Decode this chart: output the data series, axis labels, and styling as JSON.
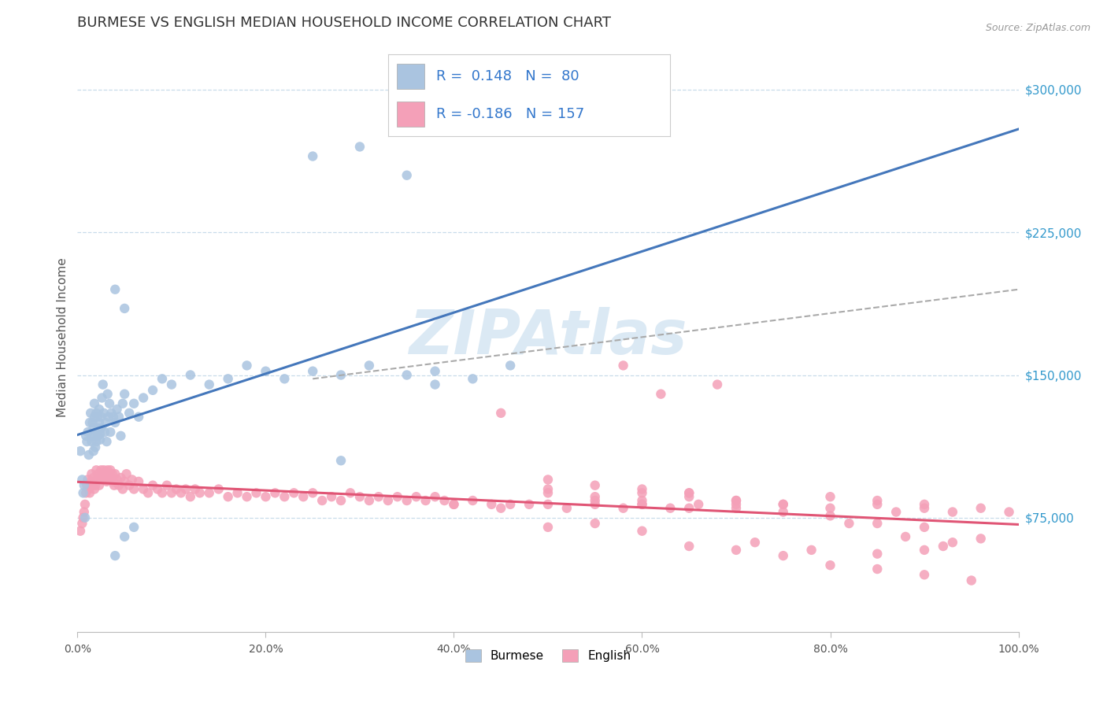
{
  "title": "BURMESE VS ENGLISH MEDIAN HOUSEHOLD INCOME CORRELATION CHART",
  "source": "Source: ZipAtlas.com",
  "ylabel": "Median Household Income",
  "y_ticks": [
    75000,
    150000,
    225000,
    300000
  ],
  "y_tick_labels": [
    "$75,000",
    "$150,000",
    "$225,000",
    "$300,000"
  ],
  "x_min": 0.0,
  "x_max": 1.0,
  "y_min": 15000,
  "y_max": 325000,
  "burmese_color": "#aac4e0",
  "english_color": "#f4a0b8",
  "burmese_line_color": "#4477bb",
  "english_line_color": "#e05575",
  "dashed_line_color": "#aaaaaa",
  "burmese_R": "0.148",
  "burmese_N": "80",
  "english_R": "-0.186",
  "english_N": "157",
  "watermark": "ZIPAtlas",
  "background_color": "#ffffff",
  "grid_color": "#c8dcea",
  "title_fontsize": 13,
  "axis_label_fontsize": 11,
  "tick_fontsize": 10,
  "legend_text_color": "#3377cc",
  "burmese_x": [
    0.003,
    0.005,
    0.006,
    0.007,
    0.008,
    0.009,
    0.01,
    0.011,
    0.012,
    0.013,
    0.014,
    0.015,
    0.016,
    0.016,
    0.017,
    0.017,
    0.018,
    0.018,
    0.019,
    0.019,
    0.02,
    0.02,
    0.021,
    0.021,
    0.022,
    0.022,
    0.023,
    0.023,
    0.024,
    0.024,
    0.025,
    0.025,
    0.026,
    0.027,
    0.028,
    0.029,
    0.03,
    0.031,
    0.032,
    0.033,
    0.034,
    0.035,
    0.036,
    0.038,
    0.04,
    0.042,
    0.044,
    0.046,
    0.048,
    0.05,
    0.055,
    0.06,
    0.065,
    0.07,
    0.08,
    0.09,
    0.1,
    0.12,
    0.14,
    0.16,
    0.18,
    0.2,
    0.22,
    0.25,
    0.28,
    0.31,
    0.35,
    0.38,
    0.42,
    0.46,
    0.04,
    0.05,
    0.06,
    0.25,
    0.3,
    0.35,
    0.04,
    0.05,
    0.28,
    0.38
  ],
  "burmese_y": [
    110000,
    95000,
    88000,
    92000,
    75000,
    118000,
    115000,
    120000,
    108000,
    125000,
    130000,
    115000,
    118000,
    125000,
    110000,
    122000,
    128000,
    135000,
    118000,
    112000,
    130000,
    115000,
    128000,
    120000,
    122000,
    118000,
    125000,
    132000,
    119000,
    116000,
    128000,
    122000,
    138000,
    145000,
    130000,
    120000,
    125000,
    115000,
    140000,
    128000,
    135000,
    120000,
    130000,
    128000,
    125000,
    132000,
    128000,
    118000,
    135000,
    140000,
    130000,
    135000,
    128000,
    138000,
    142000,
    148000,
    145000,
    150000,
    145000,
    148000,
    155000,
    152000,
    148000,
    152000,
    150000,
    155000,
    150000,
    152000,
    148000,
    155000,
    55000,
    65000,
    70000,
    265000,
    270000,
    255000,
    195000,
    185000,
    105000,
    145000
  ],
  "english_x": [
    0.003,
    0.005,
    0.006,
    0.007,
    0.008,
    0.009,
    0.01,
    0.011,
    0.012,
    0.013,
    0.014,
    0.015,
    0.016,
    0.017,
    0.018,
    0.019,
    0.02,
    0.021,
    0.022,
    0.023,
    0.024,
    0.025,
    0.026,
    0.027,
    0.028,
    0.029,
    0.03,
    0.031,
    0.032,
    0.033,
    0.034,
    0.035,
    0.036,
    0.037,
    0.038,
    0.039,
    0.04,
    0.042,
    0.044,
    0.046,
    0.048,
    0.05,
    0.052,
    0.055,
    0.058,
    0.06,
    0.065,
    0.07,
    0.075,
    0.08,
    0.085,
    0.09,
    0.095,
    0.1,
    0.105,
    0.11,
    0.115,
    0.12,
    0.125,
    0.13,
    0.14,
    0.15,
    0.16,
    0.17,
    0.18,
    0.19,
    0.2,
    0.21,
    0.22,
    0.23,
    0.24,
    0.25,
    0.26,
    0.27,
    0.28,
    0.29,
    0.3,
    0.31,
    0.32,
    0.33,
    0.34,
    0.35,
    0.36,
    0.37,
    0.38,
    0.39,
    0.4,
    0.42,
    0.44,
    0.46,
    0.48,
    0.5,
    0.52,
    0.55,
    0.58,
    0.6,
    0.63,
    0.66,
    0.7,
    0.75,
    0.8,
    0.85,
    0.87,
    0.9,
    0.93,
    0.96,
    0.99,
    0.5,
    0.55,
    0.6,
    0.65,
    0.7,
    0.75,
    0.8,
    0.85,
    0.9,
    0.85,
    0.9,
    0.93,
    0.96,
    0.5,
    0.6,
    0.65,
    0.7,
    0.4,
    0.45,
    0.55,
    0.6,
    0.65,
    0.7,
    0.75,
    0.8,
    0.85,
    0.9,
    0.62,
    0.68,
    0.58,
    0.45,
    0.5,
    0.55,
    0.6,
    0.65,
    0.7,
    0.75,
    0.8,
    0.85,
    0.9,
    0.95,
    0.72,
    0.78,
    0.82,
    0.88,
    0.92,
    0.5,
    0.55,
    0.6,
    0.65
  ],
  "english_y": [
    68000,
    72000,
    75000,
    78000,
    82000,
    88000,
    92000,
    95000,
    90000,
    88000,
    94000,
    98000,
    92000,
    96000,
    90000,
    92000,
    100000,
    95000,
    98000,
    92000,
    96000,
    100000,
    98000,
    95000,
    100000,
    96000,
    98000,
    94000,
    100000,
    96000,
    98000,
    100000,
    96000,
    98000,
    94000,
    92000,
    98000,
    95000,
    92000,
    96000,
    90000,
    94000,
    98000,
    92000,
    95000,
    90000,
    94000,
    90000,
    88000,
    92000,
    90000,
    88000,
    92000,
    88000,
    90000,
    88000,
    90000,
    86000,
    90000,
    88000,
    88000,
    90000,
    86000,
    88000,
    86000,
    88000,
    86000,
    88000,
    86000,
    88000,
    86000,
    88000,
    84000,
    86000,
    84000,
    88000,
    86000,
    84000,
    86000,
    84000,
    86000,
    84000,
    86000,
    84000,
    86000,
    84000,
    82000,
    84000,
    82000,
    82000,
    82000,
    82000,
    80000,
    82000,
    80000,
    82000,
    80000,
    82000,
    80000,
    82000,
    80000,
    82000,
    78000,
    80000,
    78000,
    80000,
    78000,
    88000,
    86000,
    84000,
    88000,
    84000,
    82000,
    86000,
    84000,
    82000,
    56000,
    58000,
    62000,
    64000,
    90000,
    88000,
    86000,
    84000,
    82000,
    80000,
    84000,
    82000,
    80000,
    82000,
    78000,
    76000,
    72000,
    70000,
    140000,
    145000,
    155000,
    130000,
    70000,
    72000,
    68000,
    60000,
    58000,
    55000,
    50000,
    48000,
    45000,
    42000,
    62000,
    58000,
    72000,
    65000,
    60000,
    95000,
    92000,
    90000,
    88000
  ]
}
